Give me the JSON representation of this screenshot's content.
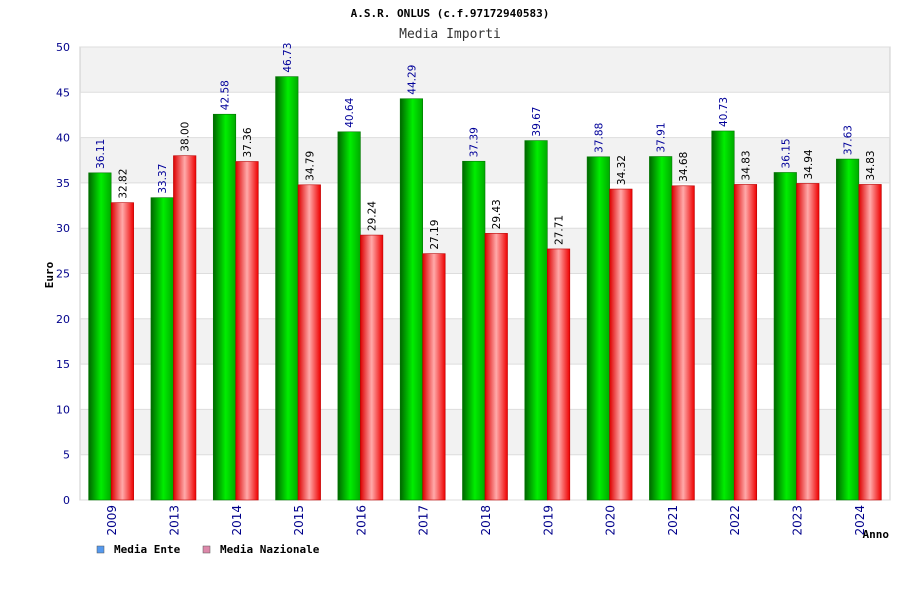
{
  "chart_data": {
    "type": "bar",
    "title": "A.S.R. ONLUS (c.f.97172940583)",
    "subtitle": "Media Importi",
    "xlabel": "Anno",
    "ylabel": "Euro",
    "ylim": [
      0,
      50
    ],
    "yticks": [
      0,
      5,
      10,
      15,
      20,
      25,
      30,
      35,
      40,
      45,
      50
    ],
    "grid": true,
    "legend_position": "bottom-left",
    "categories": [
      "2009",
      "2013",
      "2014",
      "2015",
      "2016",
      "2017",
      "2018",
      "2019",
      "2020",
      "2021",
      "2022",
      "2023",
      "2024"
    ],
    "series": [
      {
        "name": "Media Ente",
        "color": "#00cc00",
        "legend_color": "#5599ee",
        "label_color": "#000099",
        "values": [
          36.11,
          33.37,
          42.58,
          46.73,
          40.64,
          44.29,
          37.39,
          39.67,
          37.88,
          37.91,
          40.73,
          36.15,
          37.63
        ]
      },
      {
        "name": "Media Nazionale",
        "color": "#ff0000",
        "legend_color": "#dd88aa",
        "label_color": "#000000",
        "values": [
          32.82,
          38.0,
          37.36,
          34.79,
          29.24,
          27.19,
          29.43,
          27.71,
          34.32,
          34.68,
          34.83,
          34.94,
          34.83
        ]
      }
    ]
  }
}
